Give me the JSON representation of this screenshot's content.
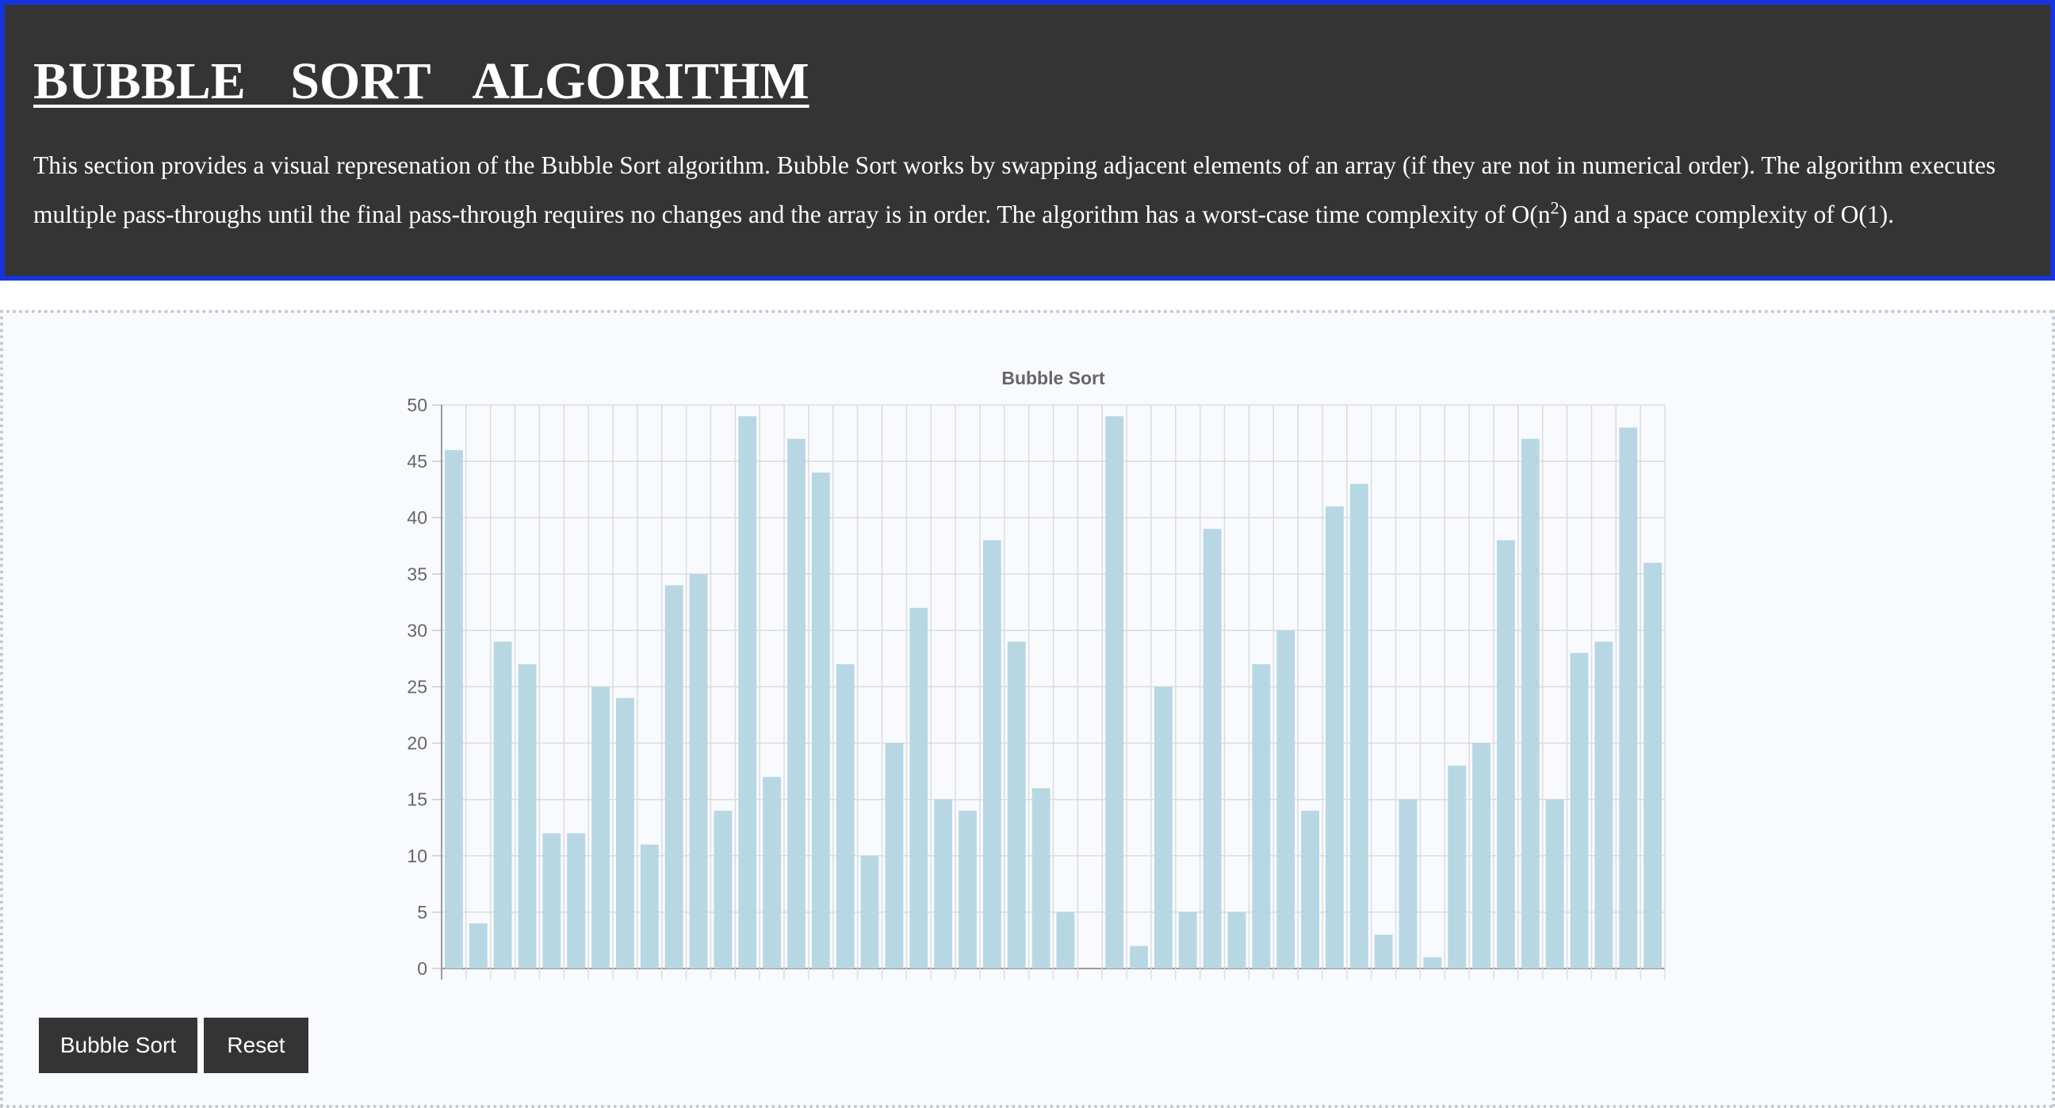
{
  "header": {
    "title": "BUBBLE SORT ALGORITHM",
    "description_part1": "This section provides a visual represenation of the Bubble Sort algorithm. Bubble Sort works by swapping adjacent elements of an array (if they are not in numerical order). The algorithm executes multiple pass-throughs until the final pass-through requires no changes and the array is in order. The algorithm has a worst-case time complexity of O(n",
    "description_sup": "2",
    "description_part2": ") and a space complexity of O(1)."
  },
  "controls": {
    "sort_label": "Bubble Sort",
    "reset_label": "Reset"
  },
  "colors": {
    "header_bg": "#343434",
    "header_border": "#1634d8",
    "bar_fill": "#b7d7e3",
    "button_bg": "#343434"
  },
  "chart_data": {
    "type": "bar",
    "title": "Bubble Sort",
    "ylim": [
      0,
      50
    ],
    "yticks": [
      0,
      5,
      10,
      15,
      20,
      25,
      30,
      35,
      40,
      45,
      50
    ],
    "grid": true,
    "values": [
      46,
      4,
      29,
      27,
      12,
      12,
      25,
      24,
      11,
      34,
      35,
      14,
      49,
      17,
      47,
      44,
      27,
      10,
      20,
      32,
      15,
      14,
      38,
      29,
      16,
      5,
      0,
      49,
      2,
      25,
      5,
      39,
      5,
      27,
      30,
      14,
      41,
      43,
      3,
      15,
      1,
      18,
      20,
      38,
      47,
      15,
      28,
      29,
      48,
      36
    ]
  }
}
